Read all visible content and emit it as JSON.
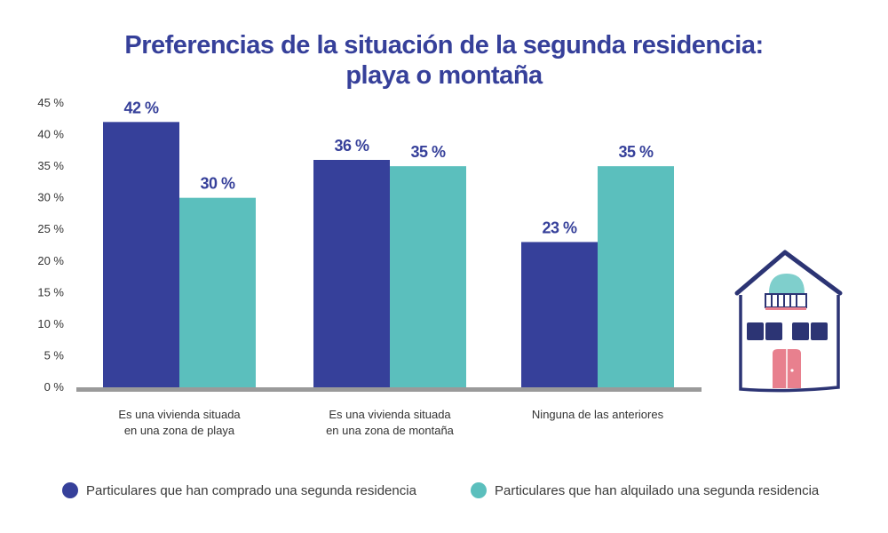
{
  "chart_data": {
    "type": "bar",
    "title": "Preferencias de la situación de la segunda residencia: playa o montaña",
    "title_lines": [
      "Preferencias de la situación de la segunda residencia:",
      "playa o montaña"
    ],
    "categories": [
      [
        "Es una vivienda situada",
        "en una zona de playa"
      ],
      [
        "Es una vivienda situada",
        "en una zona de montaña"
      ],
      [
        "Ninguna de las anteriores"
      ]
    ],
    "series": [
      {
        "name": "Particulares que han comprado una segunda residencia",
        "color": "#36409a",
        "values": [
          42,
          36,
          23
        ],
        "labels": [
          "42 %",
          "36 %",
          "23 %"
        ]
      },
      {
        "name": "Particulares que han alquilado una segunda residencia",
        "color": "#5bbfbd",
        "values": [
          30,
          35,
          35
        ],
        "labels": [
          "30 %",
          "35 %",
          "35 %"
        ]
      }
    ],
    "y_ticks": [
      "45 %",
      "40 %",
      "35 %",
      "30 %",
      "25 %",
      "20 %",
      "15 %",
      "10 %",
      "5 %",
      "0 %"
    ],
    "ylim": [
      0,
      45
    ],
    "legend_position": "bottom",
    "xlabel": "",
    "ylabel": ""
  },
  "colors": {
    "title": "#36409a",
    "axis": "#9a9a9a",
    "house_outline": "#2c3474",
    "house_window": "#2c3474",
    "house_door": "#e8808e",
    "house_dome": "#7fcfcc"
  },
  "illustration": {
    "icon": "house-icon"
  }
}
